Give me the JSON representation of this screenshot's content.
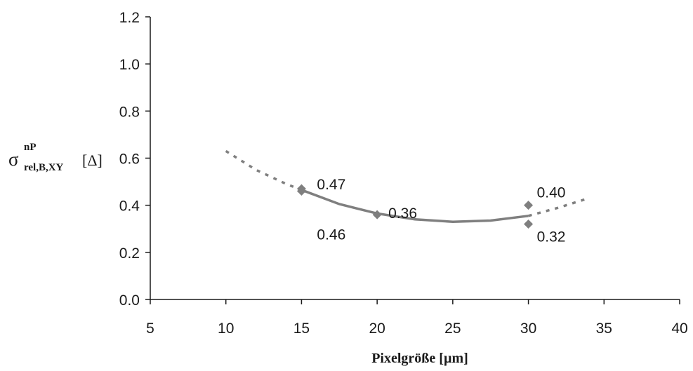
{
  "chart_data": {
    "type": "scatter",
    "xlabel": "Pixelgröße [µm]",
    "ylabel": {
      "symbol": "σ",
      "superscript": "nP",
      "subscript": "rel,B,XY",
      "unit": "[Δ]"
    },
    "xlim": [
      5,
      40
    ],
    "ylim": [
      0.0,
      1.2
    ],
    "x_ticks": [
      "5",
      "10",
      "15",
      "20",
      "25",
      "30",
      "35",
      "40"
    ],
    "y_ticks": [
      "0.0",
      "0.2",
      "0.4",
      "0.6",
      "0.8",
      "1.0",
      "1.2"
    ],
    "grid": false,
    "points": [
      {
        "x": 15,
        "y": 0.47,
        "label": "0.47"
      },
      {
        "x": 15,
        "y": 0.46,
        "label": "0.46"
      },
      {
        "x": 20,
        "y": 0.36,
        "label": "0.36"
      },
      {
        "x": 30,
        "y": 0.4,
        "label": "0.40"
      },
      {
        "x": 30,
        "y": 0.32,
        "label": "0.32"
      }
    ],
    "trendline": {
      "type": "polynomial-2",
      "fit_range": [
        15,
        30
      ],
      "extrapolate_range": [
        10,
        34
      ],
      "solid_points": [
        [
          15,
          0.465
        ],
        [
          17.5,
          0.405
        ],
        [
          20,
          0.365
        ],
        [
          22.5,
          0.34
        ],
        [
          25,
          0.33
        ],
        [
          27.5,
          0.335
        ],
        [
          30,
          0.355
        ]
      ],
      "dotted_points": [
        [
          10,
          0.63
        ],
        [
          12,
          0.55
        ],
        [
          14,
          0.49
        ],
        [
          15,
          0.465
        ],
        [
          30,
          0.355
        ],
        [
          32,
          0.39
        ],
        [
          34,
          0.43
        ]
      ]
    },
    "colors": {
      "marker": "#7f7f7f",
      "trend": "#7f7f7f",
      "axis": "#1a1a1a"
    }
  }
}
